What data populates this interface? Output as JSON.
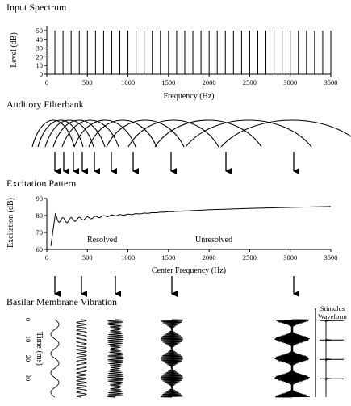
{
  "panels": {
    "input_spectrum": {
      "title": "Input Spectrum",
      "ylabel": "Level (dB)",
      "xlabel": "Frequency (Hz)",
      "x_ticks": [
        "0",
        "500",
        "1000",
        "1500",
        "2000",
        "2500",
        "3000",
        "3500"
      ],
      "y_ticks": [
        "0",
        "10",
        "20",
        "30",
        "40",
        "50"
      ]
    },
    "filterbank": {
      "title": "Auditory Filterbank"
    },
    "excitation": {
      "title": "Excitation Pattern",
      "ylabel": "Excitation (dB)",
      "xlabel": "Center Frequency (Hz)",
      "x_ticks": [
        "0",
        "500",
        "1000",
        "1500",
        "2000",
        "2500",
        "3000",
        "3500"
      ],
      "y_ticks": [
        "60",
        "70",
        "80",
        "90"
      ],
      "resolved_label": "Resolved",
      "unresolved_label": "Unresolved"
    },
    "basilar": {
      "title": "Basilar Membrane Vibration",
      "time_label": "Time (ms)",
      "time_ticks": [
        "0",
        "10",
        "20",
        "30"
      ],
      "stimulus_label_line1": "Stimulus",
      "stimulus_label_line2": "Waveform"
    }
  },
  "chart_data": [
    {
      "type": "bar",
      "title": "Input Spectrum",
      "xlabel": "Frequency (Hz)",
      "ylabel": "Level (dB)",
      "xlim": [
        0,
        3500
      ],
      "ylim": [
        0,
        50
      ],
      "fundamental_hz": 100,
      "x": [
        100,
        200,
        300,
        400,
        500,
        600,
        700,
        800,
        900,
        1000,
        1100,
        1200,
        1300,
        1400,
        1500,
        1600,
        1700,
        1800,
        1900,
        2000,
        2100,
        2200,
        2300,
        2400,
        2500,
        2600,
        2700,
        2800,
        2900,
        3000,
        3100,
        3200,
        3300,
        3400,
        3500
      ],
      "values": [
        50,
        50,
        50,
        50,
        50,
        50,
        50,
        50,
        50,
        50,
        50,
        50,
        50,
        50,
        50,
        50,
        50,
        50,
        50,
        50,
        50,
        50,
        50,
        50,
        50,
        50,
        50,
        50,
        50,
        50,
        50,
        50,
        50,
        50,
        50
      ]
    },
    {
      "type": "line",
      "title": "Excitation Pattern",
      "xlabel": "Center Frequency (Hz)",
      "ylabel": "Excitation (dB)",
      "xlim": [
        0,
        3500
      ],
      "ylim": [
        60,
        90
      ],
      "x": [
        50,
        100,
        200,
        300,
        400,
        500,
        600,
        700,
        800,
        900,
        1000,
        1200,
        1500,
        2000,
        2500,
        3000,
        3500
      ],
      "values": [
        62,
        79,
        77,
        77.5,
        78,
        78.5,
        79,
        79.5,
        80,
        80.3,
        80.6,
        81.3,
        82.2,
        83.4,
        84.2,
        84.8,
        85.3
      ]
    }
  ]
}
